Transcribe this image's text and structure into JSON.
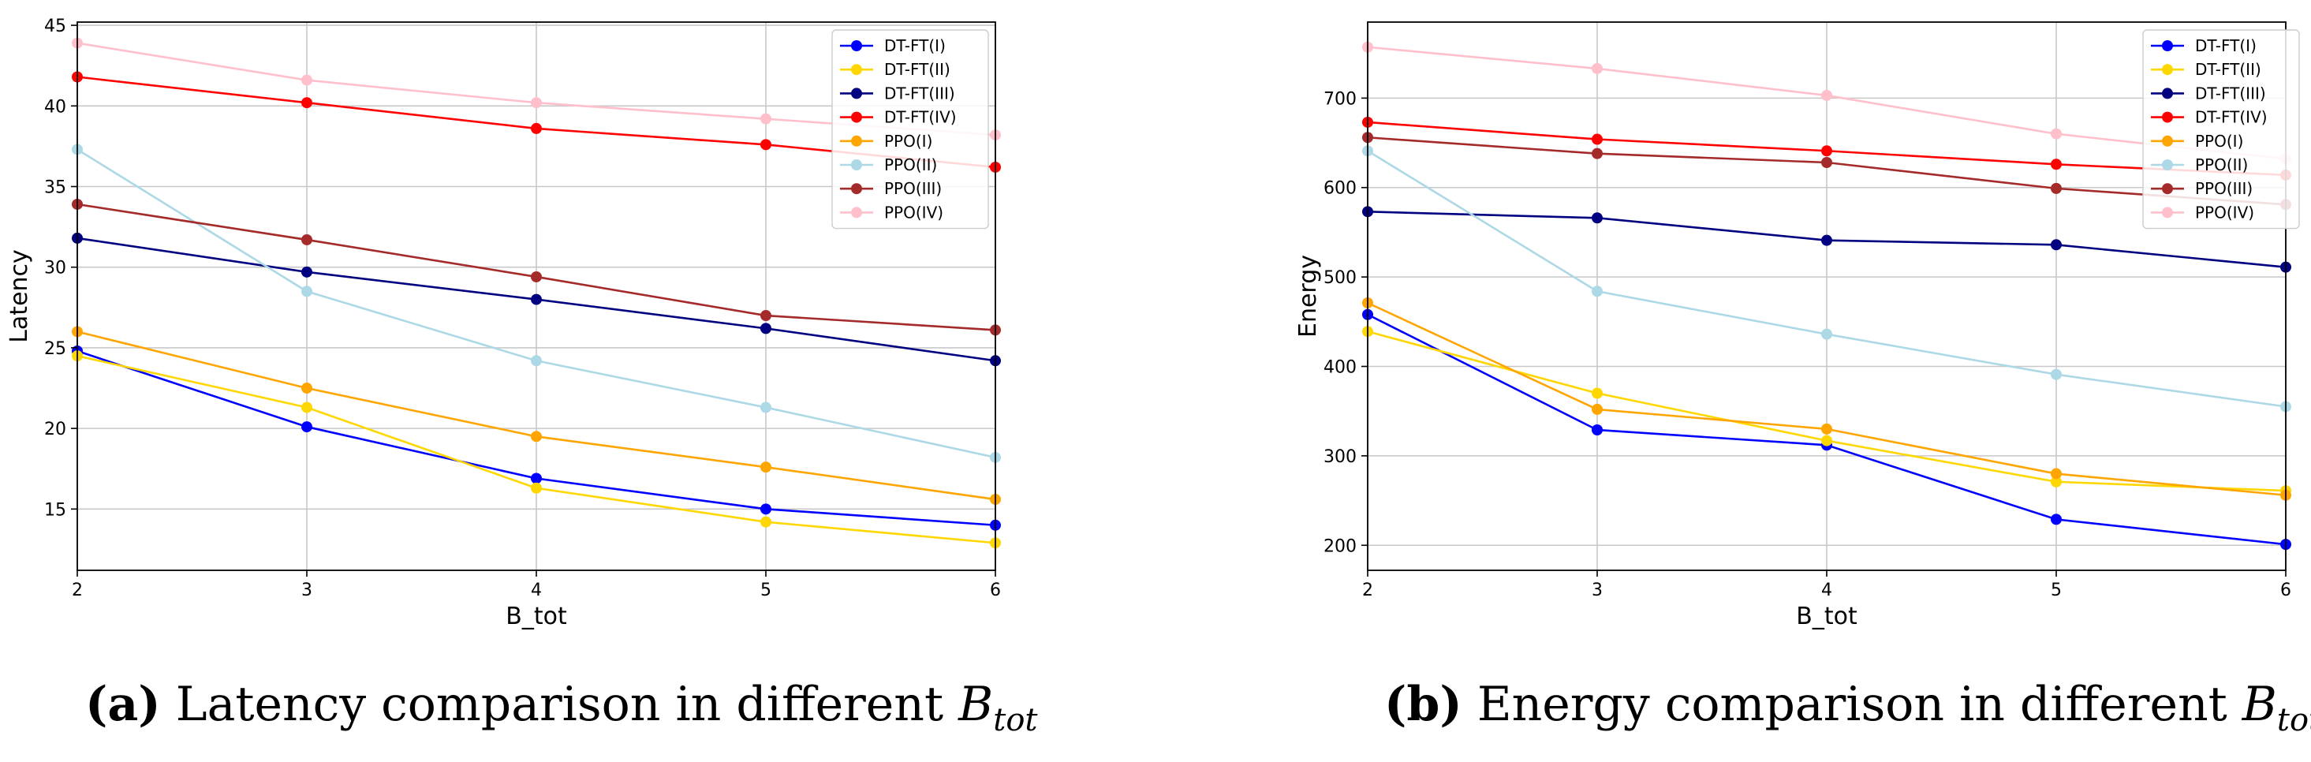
{
  "chart_data": [
    {
      "type": "line",
      "x": [
        2,
        3,
        4,
        5,
        6
      ],
      "xlabel": "B_tot",
      "ylabel": "Latency",
      "xlim": [
        2,
        6
      ],
      "ylim": [
        11.2,
        45.2
      ],
      "yticks": [
        15,
        20,
        25,
        30,
        35,
        40,
        45
      ],
      "xticks": [
        2,
        3,
        4,
        5,
        6
      ],
      "grid": true,
      "legend": "top-right",
      "series": [
        {
          "name": "DT-FT(I)",
          "color": "#0000ff",
          "values": [
            24.8,
            20.1,
            16.9,
            15.0,
            14.0
          ]
        },
        {
          "name": "DT-FT(II)",
          "color": "#ffd700",
          "values": [
            24.5,
            21.3,
            16.3,
            14.2,
            12.9
          ]
        },
        {
          "name": "DT-FT(III)",
          "color": "#000080",
          "values": [
            31.8,
            29.7,
            28.0,
            26.2,
            24.2
          ]
        },
        {
          "name": "DT-FT(IV)",
          "color": "#ff0000",
          "values": [
            41.8,
            40.2,
            38.6,
            37.6,
            36.2
          ]
        },
        {
          "name": "PPO(I)",
          "color": "#ffa500",
          "values": [
            26.0,
            22.5,
            19.5,
            17.6,
            15.6
          ]
        },
        {
          "name": "PPO(II)",
          "color": "#add8e6",
          "values": [
            37.3,
            28.5,
            24.2,
            21.3,
            18.2
          ]
        },
        {
          "name": "PPO(III)",
          "color": "#a52a2a",
          "values": [
            33.9,
            31.7,
            29.4,
            27.0,
            26.1
          ]
        },
        {
          "name": "PPO(IV)",
          "color": "#ffc0cb",
          "values": [
            43.9,
            41.6,
            40.2,
            39.2,
            38.2
          ]
        }
      ]
    },
    {
      "type": "line",
      "x": [
        2,
        3,
        4,
        5,
        6
      ],
      "xlabel": "B_tot",
      "ylabel": "Energy",
      "xlim": [
        2,
        6
      ],
      "ylim": [
        172,
        785
      ],
      "yticks": [
        200,
        300,
        400,
        500,
        600,
        700
      ],
      "xticks": [
        2,
        3,
        4,
        5,
        6
      ],
      "grid": true,
      "legend": "top-right",
      "series": [
        {
          "name": "DT-FT(I)",
          "color": "#0000ff",
          "values": [
            458,
            329,
            312,
            229,
            201
          ]
        },
        {
          "name": "DT-FT(II)",
          "color": "#ffd700",
          "values": [
            439,
            370,
            317,
            271,
            261
          ]
        },
        {
          "name": "DT-FT(III)",
          "color": "#000080",
          "values": [
            573,
            566,
            541,
            536,
            511
          ]
        },
        {
          "name": "DT-FT(IV)",
          "color": "#ff0000",
          "values": [
            673,
            654,
            641,
            626,
            614
          ]
        },
        {
          "name": "PPO(I)",
          "color": "#ffa500",
          "values": [
            471,
            352,
            330,
            280,
            256
          ]
        },
        {
          "name": "PPO(II)",
          "color": "#add8e6",
          "values": [
            641,
            484,
            436,
            391,
            355
          ]
        },
        {
          "name": "PPO(III)",
          "color": "#a52a2a",
          "values": [
            656,
            638,
            628,
            599,
            581
          ]
        },
        {
          "name": "PPO(IV)",
          "color": "#ffc0cb",
          "values": [
            757,
            733,
            703,
            660,
            632
          ]
        }
      ]
    }
  ],
  "captions": [
    {
      "label": "(a)",
      "text": "Latency comparison in different",
      "symbol": "B",
      "sub": "tot"
    },
    {
      "label": "(b)",
      "text": "Energy comparison in different",
      "symbol": "B",
      "sub": "tot"
    }
  ]
}
